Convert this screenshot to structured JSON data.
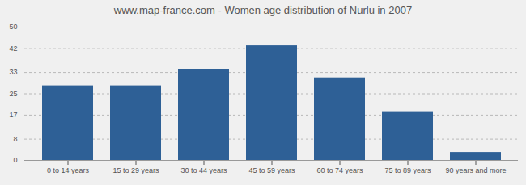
{
  "chart_data": {
    "type": "bar",
    "title": "www.map-france.com - Women age distribution of Nurlu in 2007",
    "categories": [
      "0 to 14 years",
      "15 to 29 years",
      "30 to 44 years",
      "45 to 59 years",
      "60 to 74 years",
      "75 to 89 years",
      "90 years and more"
    ],
    "values": [
      28,
      28,
      34,
      43,
      31,
      18,
      3
    ],
    "color": "#2e6096",
    "ylim": [
      0,
      50
    ],
    "yticks": [
      0,
      8,
      17,
      25,
      33,
      42,
      50
    ],
    "grid": true
  }
}
